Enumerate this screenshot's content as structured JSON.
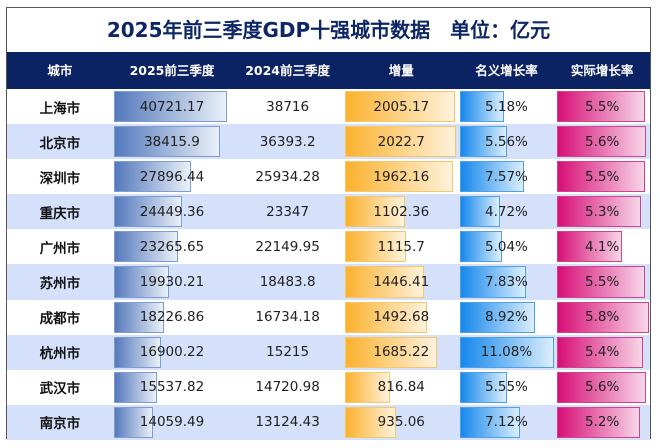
{
  "title": "2025年前三季度GDP十强城市数据　单位：亿元",
  "headers": [
    "城市",
    "2025前三季度",
    "2024前三季度",
    "增量",
    "名义增长率",
    "实际增长率"
  ],
  "colors": {
    "header_bg": "#0b2263",
    "title": "#0d2666",
    "stripe": "#d5e1fb",
    "bar_2025": "#5479bc",
    "bar_increase": "#fbb22e",
    "bar_nominal": "#1688ec",
    "bar_real": "#d70f77"
  },
  "rows": [
    {
      "city": "上海市",
      "gdp2025": "40721.17",
      "gdp2024": "38716",
      "increase": "2005.17",
      "nominal": "5.18%",
      "real": "5.5%"
    },
    {
      "city": "北京市",
      "gdp2025": "38415.9",
      "gdp2024": "36393.2",
      "increase": "2022.7",
      "nominal": "5.56%",
      "real": "5.6%"
    },
    {
      "city": "深圳市",
      "gdp2025": "27896.44",
      "gdp2024": "25934.28",
      "increase": "1962.16",
      "nominal": "7.57%",
      "real": "5.5%"
    },
    {
      "city": "重庆市",
      "gdp2025": "24449.36",
      "gdp2024": "23347",
      "increase": "1102.36",
      "nominal": "4.72%",
      "real": "5.3%"
    },
    {
      "city": "广州市",
      "gdp2025": "23265.65",
      "gdp2024": "22149.95",
      "increase": "1115.7",
      "nominal": "5.04%",
      "real": "4.1%"
    },
    {
      "city": "苏州市",
      "gdp2025": "19930.21",
      "gdp2024": "18483.8",
      "increase": "1446.41",
      "nominal": "7.83%",
      "real": "5.5%"
    },
    {
      "city": "成都市",
      "gdp2025": "18226.86",
      "gdp2024": "16734.18",
      "increase": "1492.68",
      "nominal": "8.92%",
      "real": "5.8%"
    },
    {
      "city": "杭州市",
      "gdp2025": "16900.22",
      "gdp2024": "15215",
      "increase": "1685.22",
      "nominal": "11.08%",
      "real": "5.4%"
    },
    {
      "city": "武汉市",
      "gdp2025": "15537.82",
      "gdp2024": "14720.98",
      "increase": "816.84",
      "nominal": "5.55%",
      "real": "5.6%"
    },
    {
      "city": "南京市",
      "gdp2025": "14059.49",
      "gdp2024": "13124.43",
      "increase": "935.06",
      "nominal": "7.12%",
      "real": "5.2%"
    }
  ]
}
